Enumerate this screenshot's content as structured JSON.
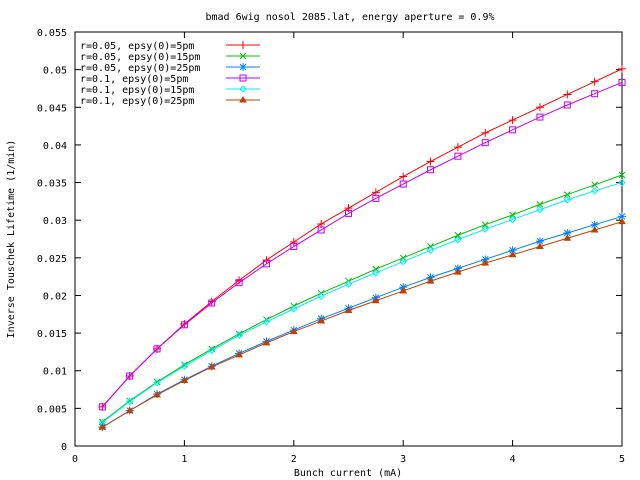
{
  "chart_data": {
    "type": "line",
    "title": "bmad 6wig nosol 2085.lat, energy aperture = 0.9%",
    "xlabel": "Bunch current (mA)",
    "ylabel": "Inverse Touschek Lifetime (1/min)",
    "xlim": [
      0,
      5
    ],
    "ylim": [
      0,
      0.055
    ],
    "xticks": [
      "0",
      "1",
      "2",
      "3",
      "4",
      "5"
    ],
    "yticks": [
      "0",
      "0.005",
      "0.01",
      "0.015",
      "0.02",
      "0.025",
      "0.03",
      "0.035",
      "0.04",
      "0.045",
      "0.05",
      "0.055"
    ],
    "grid": false,
    "legend_position": "top-left",
    "x": [
      0.25,
      0.5,
      0.75,
      1,
      1.25,
      1.5,
      1.75,
      2,
      2.25,
      2.5,
      2.75,
      3,
      3.25,
      3.5,
      3.75,
      4,
      4.25,
      4.5,
      4.75,
      5
    ],
    "series": [
      {
        "name": "r=0.05, epsy(0)=5pm",
        "color": "#ff0000",
        "marker": "plus",
        "values": [
          0.0052,
          0.0093,
          0.0129,
          0.0162,
          0.0192,
          0.022,
          0.0247,
          0.0271,
          0.0295,
          0.0316,
          0.0337,
          0.0358,
          0.0378,
          0.0397,
          0.0416,
          0.0433,
          0.045,
          0.0467,
          0.0484,
          0.0501
        ]
      },
      {
        "name": "r=0.05, epsy(0)=15pm",
        "color": "#00c000",
        "marker": "cross",
        "values": [
          0.0032,
          0.006,
          0.0085,
          0.0108,
          0.0129,
          0.0149,
          0.0168,
          0.0186,
          0.0203,
          0.0219,
          0.0235,
          0.025,
          0.0265,
          0.028,
          0.0294,
          0.0307,
          0.0321,
          0.0334,
          0.0347,
          0.036
        ]
      },
      {
        "name": "r=0.05, epsy(0)=25pm",
        "color": "#0080ff",
        "marker": "star",
        "values": [
          0.0025,
          0.0047,
          0.0069,
          0.0088,
          0.0106,
          0.0123,
          0.0139,
          0.0154,
          0.0169,
          0.0183,
          0.0197,
          0.0211,
          0.0224,
          0.0236,
          0.0248,
          0.026,
          0.0272,
          0.0283,
          0.0294,
          0.0305
        ]
      },
      {
        "name": "r=0.1, epsy(0)=5pm",
        "color": "#c000ff",
        "marker": "square",
        "values": [
          0.0052,
          0.0093,
          0.0129,
          0.0161,
          0.019,
          0.0217,
          0.0242,
          0.0265,
          0.0287,
          0.0309,
          0.0329,
          0.0348,
          0.0367,
          0.0385,
          0.0403,
          0.042,
          0.0437,
          0.0453,
          0.0468,
          0.0483
        ]
      },
      {
        "name": "r=0.1, epsy(0)=15pm",
        "color": "#00eeee",
        "marker": "diamond",
        "values": [
          0.0031,
          0.0059,
          0.0084,
          0.0106,
          0.0127,
          0.0147,
          0.0165,
          0.0182,
          0.0199,
          0.0215,
          0.023,
          0.0245,
          0.026,
          0.0274,
          0.0288,
          0.0301,
          0.0314,
          0.0327,
          0.0339,
          0.035
        ]
      },
      {
        "name": "r=0.1, epsy(0)=25pm",
        "color": "#c04000",
        "marker": "triangle",
        "values": [
          0.0025,
          0.0047,
          0.0068,
          0.0087,
          0.0105,
          0.0121,
          0.0137,
          0.0152,
          0.0166,
          0.018,
          0.0193,
          0.0206,
          0.0219,
          0.0231,
          0.0243,
          0.0254,
          0.0265,
          0.0276,
          0.0287,
          0.0298
        ]
      }
    ]
  }
}
